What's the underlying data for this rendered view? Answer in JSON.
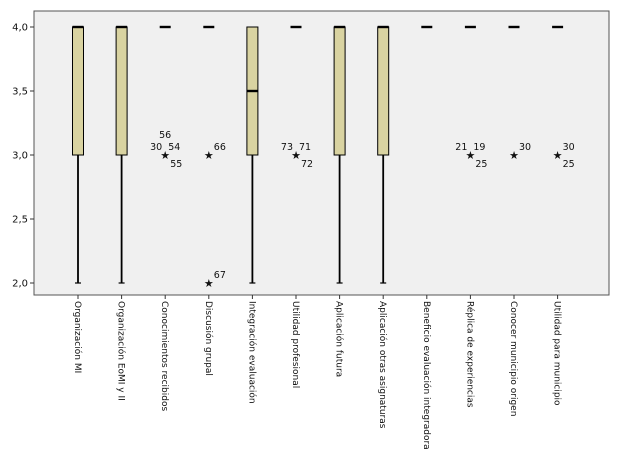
{
  "chart_data": {
    "type": "boxplot",
    "title": "",
    "xlabel": "",
    "ylabel": "",
    "ylim": [
      1.95,
      4.12
    ],
    "yticks": [
      "2,0",
      "2,5",
      "3,0",
      "3,5",
      "4,0"
    ],
    "ytick_values": [
      2.0,
      2.5,
      3.0,
      3.5,
      4.0
    ],
    "grid": false,
    "colors": {
      "box_fill": "#d9d3a1",
      "plot_bg": "#f0f0f0",
      "line": "#000000"
    },
    "categories": [
      "Organización MI",
      "Organización EoMI y II",
      "Conocimientos recibidos",
      "Discusión grupal",
      "Integración evaluación",
      "Utilidad profesional",
      "Aplicación futura",
      "Aplicación otras asignaturas",
      "Beneficio evaluación integradora",
      "Réplica de experiencias",
      "Conocer municipio origen",
      "Utilidad para municipio"
    ],
    "boxes": [
      {
        "whisker_low": 2.0,
        "q1": 3.0,
        "median": 4.0,
        "q3": 4.0,
        "whisker_high": 4.0,
        "outliers": []
      },
      {
        "whisker_low": 2.0,
        "q1": 3.0,
        "median": 4.0,
        "q3": 4.0,
        "whisker_high": 4.0,
        "outliers": []
      },
      {
        "whisker_low": 4.0,
        "q1": 4.0,
        "median": 4.0,
        "q3": 4.0,
        "whisker_high": 4.0,
        "outliers": [
          {
            "value": 3.0,
            "label_groups": [
              [
                "56"
              ],
              [
                "30",
                "54"
              ],
              [
                "55"
              ]
            ]
          }
        ]
      },
      {
        "whisker_low": 4.0,
        "q1": 4.0,
        "median": 4.0,
        "q3": 4.0,
        "whisker_high": 4.0,
        "outliers": [
          {
            "value": 3.0,
            "label_groups": [
              [],
              [],
              [
                "66"
              ]
            ]
          },
          {
            "value": 2.0,
            "label_groups": [
              [],
              [],
              [
                "67"
              ]
            ]
          }
        ]
      },
      {
        "whisker_low": 2.0,
        "q1": 3.0,
        "median": 3.5,
        "q3": 4.0,
        "whisker_high": 4.0,
        "outliers": []
      },
      {
        "whisker_low": 4.0,
        "q1": 4.0,
        "median": 4.0,
        "q3": 4.0,
        "whisker_high": 4.0,
        "outliers": [
          {
            "value": 3.0,
            "label_groups": [
              [],
              [
                "73",
                "71"
              ],
              [
                "72"
              ]
            ]
          }
        ]
      },
      {
        "whisker_low": 2.0,
        "q1": 3.0,
        "median": 4.0,
        "q3": 4.0,
        "whisker_high": 4.0,
        "outliers": []
      },
      {
        "whisker_low": 2.0,
        "q1": 3.0,
        "median": 4.0,
        "q3": 4.0,
        "whisker_high": 4.0,
        "outliers": []
      },
      {
        "whisker_low": 4.0,
        "q1": 4.0,
        "median": 4.0,
        "q3": 4.0,
        "whisker_high": 4.0,
        "outliers": []
      },
      {
        "whisker_low": 4.0,
        "q1": 4.0,
        "median": 4.0,
        "q3": 4.0,
        "whisker_high": 4.0,
        "outliers": [
          {
            "value": 3.0,
            "label_groups": [
              [],
              [
                "21",
                "19"
              ],
              [
                "25"
              ]
            ]
          }
        ]
      },
      {
        "whisker_low": 4.0,
        "q1": 4.0,
        "median": 4.0,
        "q3": 4.0,
        "whisker_high": 4.0,
        "outliers": [
          {
            "value": 3.0,
            "label_groups": [
              [],
              [],
              [
                "30"
              ]
            ]
          }
        ]
      },
      {
        "whisker_low": 4.0,
        "q1": 4.0,
        "median": 4.0,
        "q3": 4.0,
        "whisker_high": 4.0,
        "outliers": [
          {
            "value": 3.0,
            "label_groups": [
              [],
              [
                "30"
              ],
              [
                "25"
              ]
            ]
          }
        ]
      }
    ]
  }
}
